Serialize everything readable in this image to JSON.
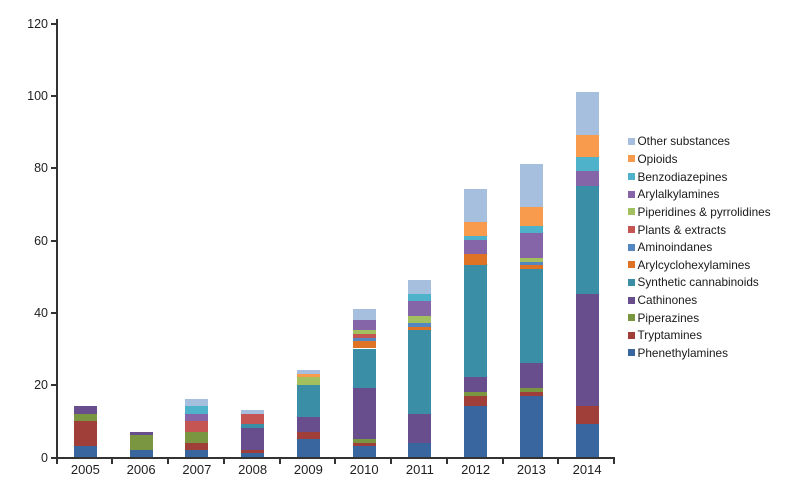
{
  "chart_data": {
    "type": "bar",
    "subtype": "stacked-vertical",
    "title": "",
    "xlabel": "",
    "ylabel": "",
    "ylim": [
      0,
      120
    ],
    "y_ticks": [
      "0",
      "20",
      "40",
      "60",
      "80",
      "100",
      "120"
    ],
    "grid": false,
    "legend_position": "right",
    "categories": [
      "2005",
      "2006",
      "2007",
      "2008",
      "2009",
      "2010",
      "2011",
      "2012",
      "2013",
      "2014"
    ],
    "series": [
      {
        "name": "Other substances",
        "color": "#A6BFDF",
        "values": [
          0,
          0,
          2,
          1,
          1,
          3,
          4,
          9,
          12,
          12
        ]
      },
      {
        "name": "Opioids",
        "color": "#F89B4C",
        "values": [
          0,
          0,
          0,
          0,
          1,
          0,
          0,
          4,
          5,
          6
        ]
      },
      {
        "name": "Benzodiazepines",
        "color": "#4FB2CB",
        "values": [
          0,
          0,
          2,
          0,
          0,
          0,
          2,
          1,
          2,
          4
        ]
      },
      {
        "name": "Arylalkylamines",
        "color": "#8565A8",
        "values": [
          0,
          0,
          2,
          0,
          0,
          3,
          4,
          4,
          7,
          4
        ]
      },
      {
        "name": "Piperidines & pyrrolidines",
        "color": "#A2C05F",
        "values": [
          0,
          0,
          0,
          0,
          2,
          1,
          2,
          0,
          1,
          0
        ]
      },
      {
        "name": "Plants & extracts",
        "color": "#C55552",
        "values": [
          0,
          0,
          3,
          3,
          0,
          1,
          0,
          0,
          0,
          0
        ]
      },
      {
        "name": "Aminoindanes",
        "color": "#5486C2",
        "values": [
          0,
          0,
          0,
          0,
          0,
          1,
          1,
          0,
          1,
          0
        ]
      },
      {
        "name": "Arylcyclohexylamines",
        "color": "#DE7325",
        "values": [
          0,
          0,
          0,
          0,
          0,
          2,
          1,
          3,
          1,
          0
        ]
      },
      {
        "name": "Synthetic cannabinoids",
        "color": "#3A8FA6",
        "values": [
          0,
          0,
          0,
          1,
          9,
          11,
          23,
          31,
          26,
          30
        ]
      },
      {
        "name": "Cathinones",
        "color": "#684E8C",
        "values": [
          2,
          1,
          0,
          6,
          4,
          14,
          8,
          4,
          7,
          31
        ]
      },
      {
        "name": "Piperazines",
        "color": "#7A9640",
        "values": [
          2,
          4,
          3,
          0,
          0,
          1,
          0,
          1,
          1,
          0
        ]
      },
      {
        "name": "Tryptamines",
        "color": "#A03E3A",
        "values": [
          7,
          0,
          2,
          1,
          2,
          1,
          0,
          3,
          1,
          5
        ]
      },
      {
        "name": "Phenethylamines",
        "color": "#3A66A0",
        "values": [
          3,
          2,
          2,
          1,
          5,
          3,
          4,
          14,
          17,
          9
        ]
      }
    ]
  }
}
